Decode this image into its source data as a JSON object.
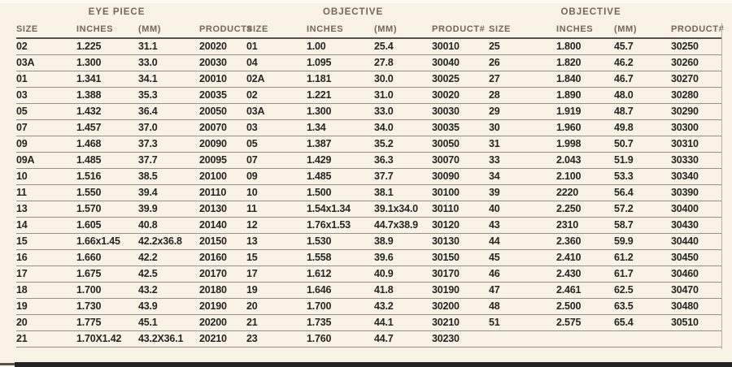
{
  "theme": {
    "bg": "#f8f3e5",
    "header-text": "#72685a",
    "data-text": "#262522",
    "row-line": "#92918a",
    "row-line-hi": "#fffef6",
    "head-line": "#53524b",
    "edge-line": "#b7b3a4",
    "bottom-bar": "#232323"
  },
  "table": {
    "groups": [
      {
        "label": "EYE PIECE"
      },
      {
        "label": "OBJECTIVE"
      },
      {
        "label": "OBJECTIVE"
      }
    ],
    "column_headers": [
      "SIZE",
      "INCHES",
      "(MM)",
      "PRODUCT#",
      "SIZE",
      "INCHES",
      "(MM)",
      "PRODUCT#",
      "SIZE",
      "INCHES",
      "(MM)",
      "PRODUCT#"
    ],
    "rows": [
      [
        "02",
        "1.225",
        "31.1",
        "20020",
        "01",
        "1.00",
        "25.4",
        "30010",
        "25",
        "1.800",
        "45.7",
        "30250"
      ],
      [
        "03A",
        "1.300",
        "33.0",
        "20030",
        "04",
        "1.095",
        "27.8",
        "30040",
        "26",
        "1.820",
        "46.2",
        "30260"
      ],
      [
        "01",
        "1.341",
        "34.1",
        "20010",
        "02A",
        "1.181",
        "30.0",
        "30025",
        "27",
        "1.840",
        "46.7",
        "30270"
      ],
      [
        "03",
        "1.388",
        "35.3",
        "20035",
        "02",
        "1.221",
        "31.0",
        "30020",
        "28",
        "1.890",
        "48.0",
        "30280"
      ],
      [
        "05",
        "1.432",
        "36.4",
        "20050",
        "03A",
        "1.300",
        "33.0",
        "30030",
        "29",
        "1.919",
        "48.7",
        "30290"
      ],
      [
        "07",
        "1.457",
        "37.0",
        "20070",
        "03",
        "1.34",
        "34.0",
        "30035",
        "30",
        "1.960",
        "49.8",
        "30300"
      ],
      [
        "09",
        "1.468",
        "37.3",
        "20090",
        "05",
        "1.387",
        "35.2",
        "30050",
        "31",
        "1.998",
        "50.7",
        "30310"
      ],
      [
        "09A",
        "1.485",
        "37.7",
        "20095",
        "07",
        "1.429",
        "36.3",
        "30070",
        "33",
        "2.043",
        "51.9",
        "30330"
      ],
      [
        "10",
        "1.516",
        "38.5",
        "20100",
        "09",
        "1.485",
        "37.7",
        "30090",
        "34",
        "2.100",
        "53.3",
        "30340"
      ],
      [
        "11",
        "1.550",
        "39.4",
        "20110",
        "10",
        "1.500",
        "38.1",
        "30100",
        "39",
        "2220",
        "56.4",
        "30390"
      ],
      [
        "13",
        "1.570",
        "39.9",
        "20130",
        "11",
        "1.54x1.34",
        "39.1x34.0",
        "30110",
        "40",
        "2.250",
        "57.2",
        "30400"
      ],
      [
        "14",
        "1.605",
        "40.8",
        "20140",
        "12",
        "1.76x1.53",
        "44.7x38.9",
        "30120",
        "43",
        "2310",
        "58.7",
        "30430"
      ],
      [
        "15",
        "1.66x1.45",
        "42.2x36.8",
        "20150",
        "13",
        "1.530",
        "38.9",
        "30130",
        "44",
        "2.360",
        "59.9",
        "30440"
      ],
      [
        "16",
        "1.660",
        "42.2",
        "20160",
        "15",
        "1.558",
        "39.6",
        "30150",
        "45",
        "2.410",
        "61.2",
        "30450"
      ],
      [
        "17",
        "1.675",
        "42.5",
        "20170",
        "17",
        "1.612",
        "40.9",
        "30170",
        "46",
        "2.430",
        "61.7",
        "30460"
      ],
      [
        "18",
        "1.700",
        "43.2",
        "20180",
        "19",
        "1.646",
        "41.8",
        "30190",
        "47",
        "2.461",
        "62.5",
        "30470"
      ],
      [
        "19",
        "1.730",
        "43.9",
        "20190",
        "20",
        "1.700",
        "43.2",
        "30200",
        "48",
        "2.500",
        "63.5",
        "30480"
      ],
      [
        "20",
        "1.775",
        "45.1",
        "20200",
        "21",
        "1.735",
        "44.1",
        "30210",
        "51",
        "2.575",
        "65.4",
        "30510"
      ],
      [
        "21",
        "1.70X1.42",
        "43.2X36.1",
        "20210",
        "23",
        "1.760",
        "44.7",
        "30230",
        "",
        "",
        "",
        ""
      ]
    ]
  }
}
